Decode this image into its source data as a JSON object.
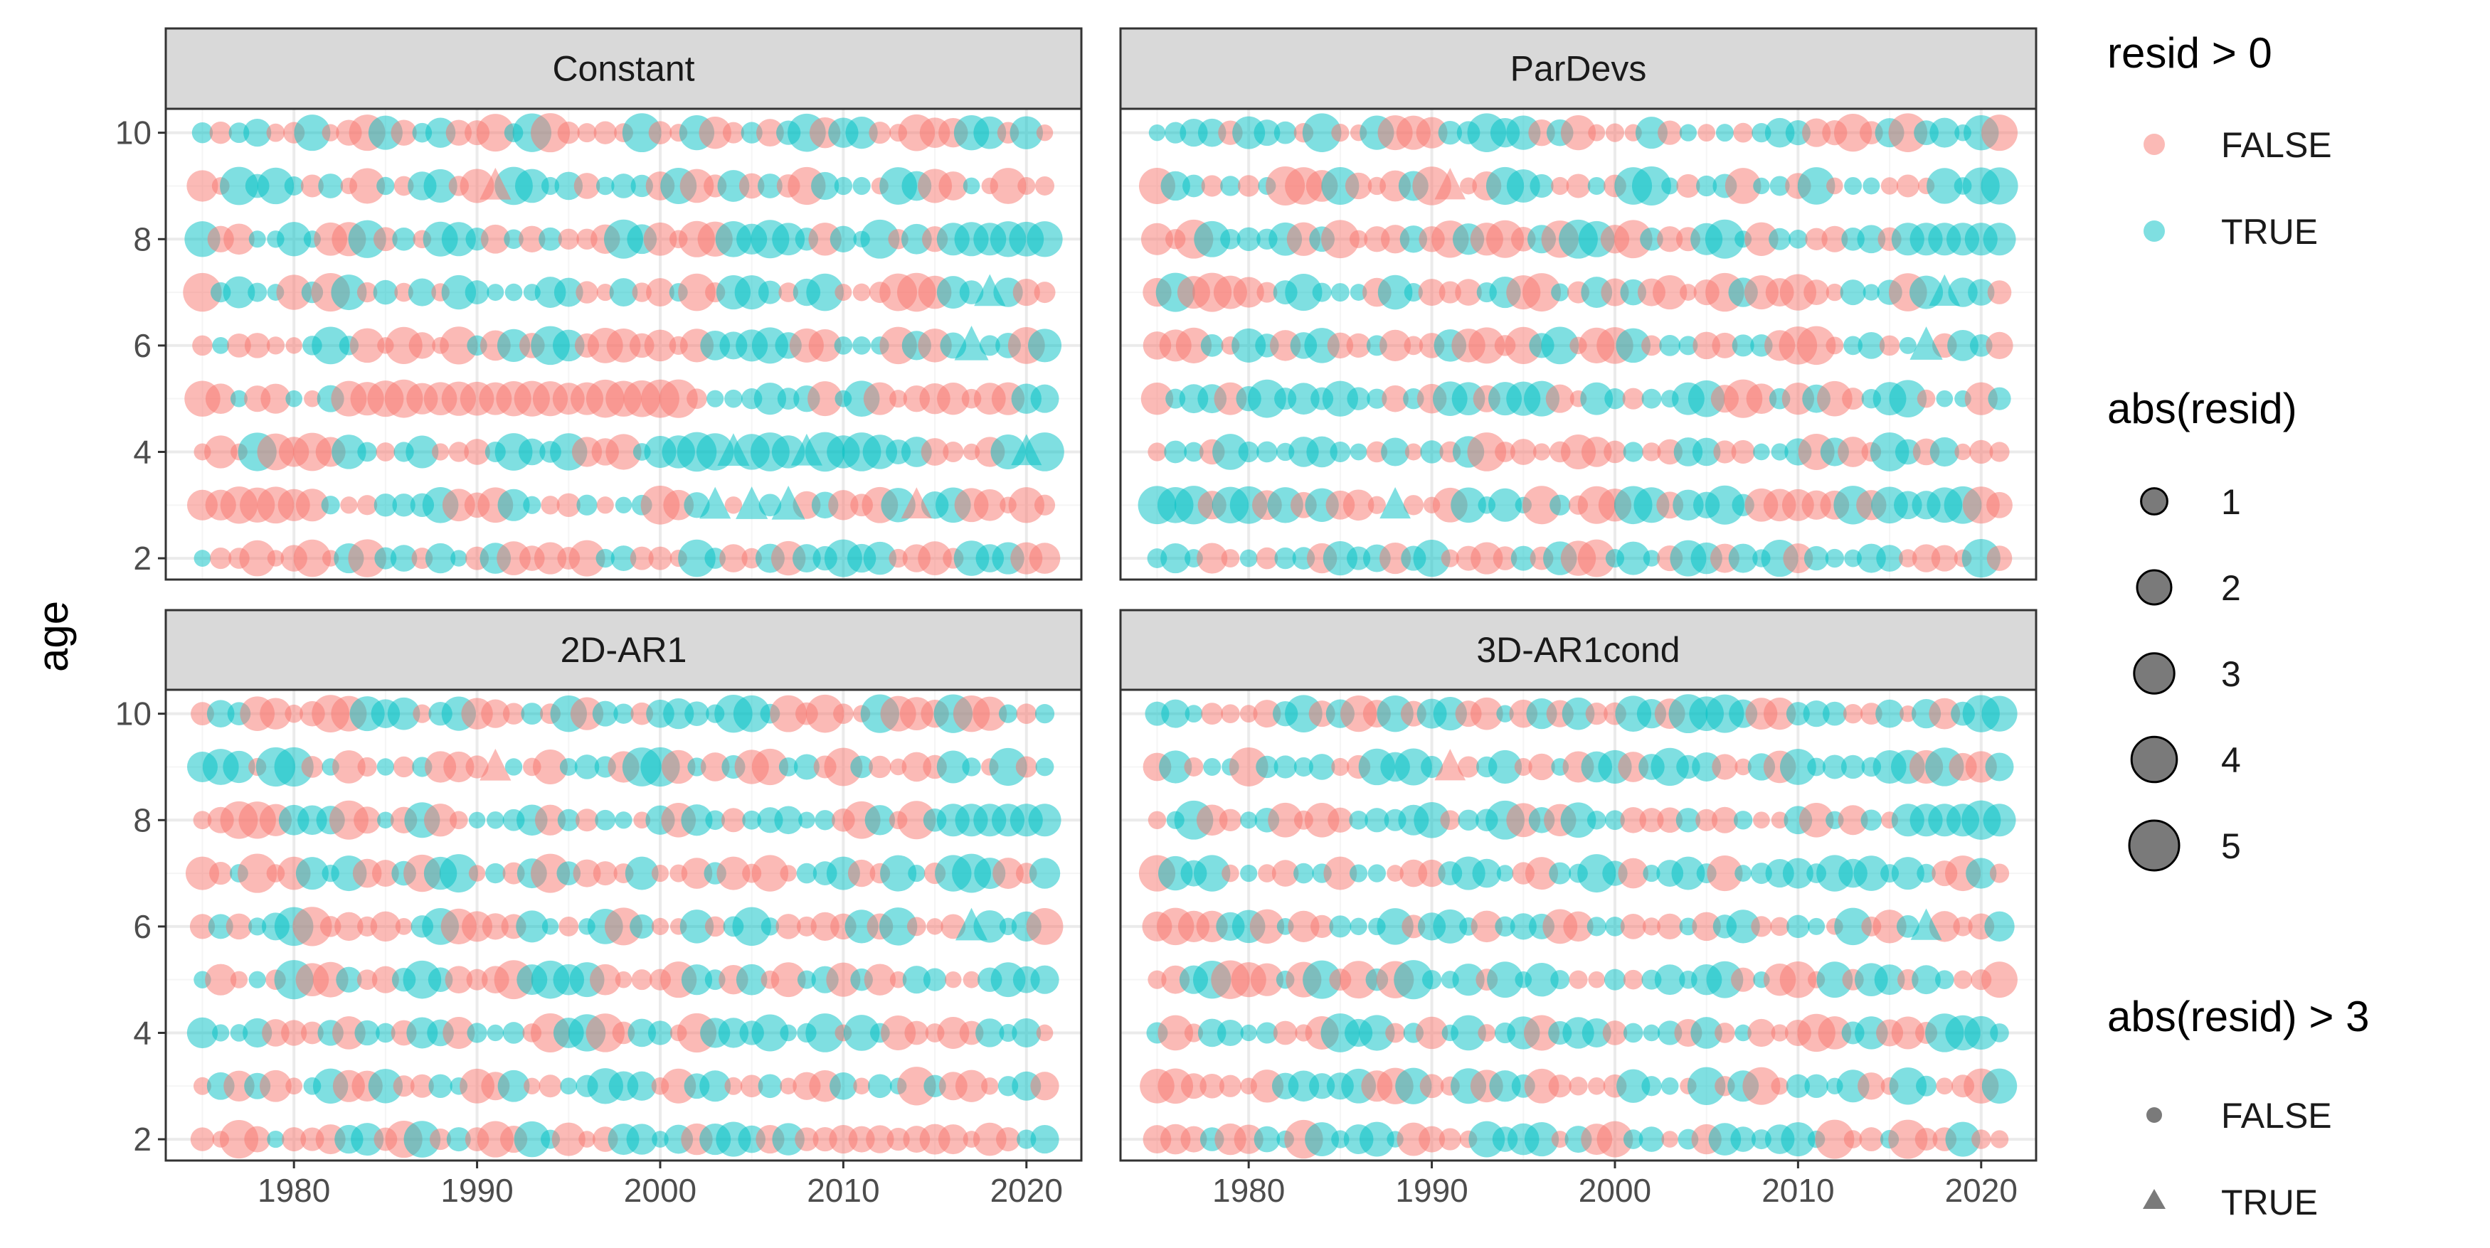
{
  "chart_data": {
    "type": "scatter",
    "facets": [
      "Constant",
      "ParDevs",
      "2D-AR1",
      "3D-AR1cond"
    ],
    "xlabel": "",
    "ylabel": "age",
    "xlim": [
      1973,
      2023
    ],
    "ylim": [
      1.6,
      10.45
    ],
    "x_ticks": [
      1980,
      1990,
      2000,
      2010,
      2020
    ],
    "y_ticks": [
      2,
      4,
      6,
      8,
      10
    ],
    "years": [
      1975,
      1976,
      1977,
      1978,
      1979,
      1980,
      1981,
      1982,
      1983,
      1984,
      1985,
      1986,
      1987,
      1988,
      1989,
      1990,
      1991,
      1992,
      1993,
      1994,
      1995,
      1996,
      1997,
      1998,
      1999,
      2000,
      2001,
      2002,
      2003,
      2004,
      2005,
      2006,
      2007,
      2008,
      2009,
      2010,
      2011,
      2012,
      2013,
      2014,
      2015,
      2016,
      2017,
      2018,
      2019,
      2020,
      2021
    ],
    "ages": [
      2,
      3,
      4,
      5,
      6,
      7,
      8,
      9,
      10
    ],
    "grid": true,
    "legend_position": "right",
    "colors": {
      "false": "#F8766D",
      "true": "#00BFC4",
      "size_legend": "#595959",
      "strip_bg": "#D9D9D9",
      "panel_border": "#333333",
      "grid_major": "#EBEBEB"
    },
    "series": [
      {
        "name": "FALSE",
        "meaning": "resid > 0 is FALSE"
      },
      {
        "name": "TRUE",
        "meaning": "resid > 0 is TRUE"
      }
    ],
    "legends": {
      "color": {
        "title": "resid > 0",
        "labels": [
          "FALSE",
          "TRUE"
        ]
      },
      "size": {
        "title": "abs(resid)",
        "labels": [
          "1",
          "2",
          "3",
          "4",
          "5"
        ],
        "values": [
          1,
          2,
          3,
          4,
          5
        ]
      },
      "shape": {
        "title": "abs(resid) > 3",
        "labels": [
          "FALSE",
          "TRUE"
        ]
      }
    },
    "extreme_points": [
      {
        "facet": "Constant",
        "x": 1991,
        "y": 9,
        "positive": false,
        "abs_resid": 3.6
      },
      {
        "facet": "Constant",
        "x": 2018,
        "y": 7,
        "positive": true,
        "abs_resid": 3.6
      },
      {
        "facet": "Constant",
        "x": 2017,
        "y": 6,
        "positive": true,
        "abs_resid": 4.4
      },
      {
        "facet": "Constant",
        "x": 2004,
        "y": 4,
        "positive": true,
        "abs_resid": 3.8
      },
      {
        "facet": "Constant",
        "x": 2008,
        "y": 4,
        "positive": true,
        "abs_resid": 3.6
      },
      {
        "facet": "Constant",
        "x": 2020,
        "y": 4,
        "positive": true,
        "abs_resid": 3.4
      },
      {
        "facet": "Constant",
        "x": 2003,
        "y": 3,
        "positive": true,
        "abs_resid": 3.6
      },
      {
        "facet": "Constant",
        "x": 2005,
        "y": 3,
        "positive": true,
        "abs_resid": 3.8
      },
      {
        "facet": "Constant",
        "x": 2007,
        "y": 3,
        "positive": true,
        "abs_resid": 4.2
      },
      {
        "facet": "Constant",
        "x": 2014,
        "y": 3,
        "positive": false,
        "abs_resid": 3.4
      },
      {
        "facet": "ParDevs",
        "x": 1991,
        "y": 9,
        "positive": false,
        "abs_resid": 3.5
      },
      {
        "facet": "ParDevs",
        "x": 2018,
        "y": 7,
        "positive": true,
        "abs_resid": 3.5
      },
      {
        "facet": "ParDevs",
        "x": 2017,
        "y": 6,
        "positive": true,
        "abs_resid": 4.0
      },
      {
        "facet": "ParDevs",
        "x": 1988,
        "y": 3,
        "positive": true,
        "abs_resid": 3.5
      },
      {
        "facet": "2D-AR1",
        "x": 1991,
        "y": 9,
        "positive": false,
        "abs_resid": 3.6
      },
      {
        "facet": "2D-AR1",
        "x": 2017,
        "y": 6,
        "positive": true,
        "abs_resid": 3.8
      },
      {
        "facet": "3D-AR1cond",
        "x": 1991,
        "y": 9,
        "positive": false,
        "abs_resid": 3.5
      },
      {
        "facet": "3D-AR1cond",
        "x": 2017,
        "y": 6,
        "positive": true,
        "abs_resid": 3.5
      }
    ]
  }
}
